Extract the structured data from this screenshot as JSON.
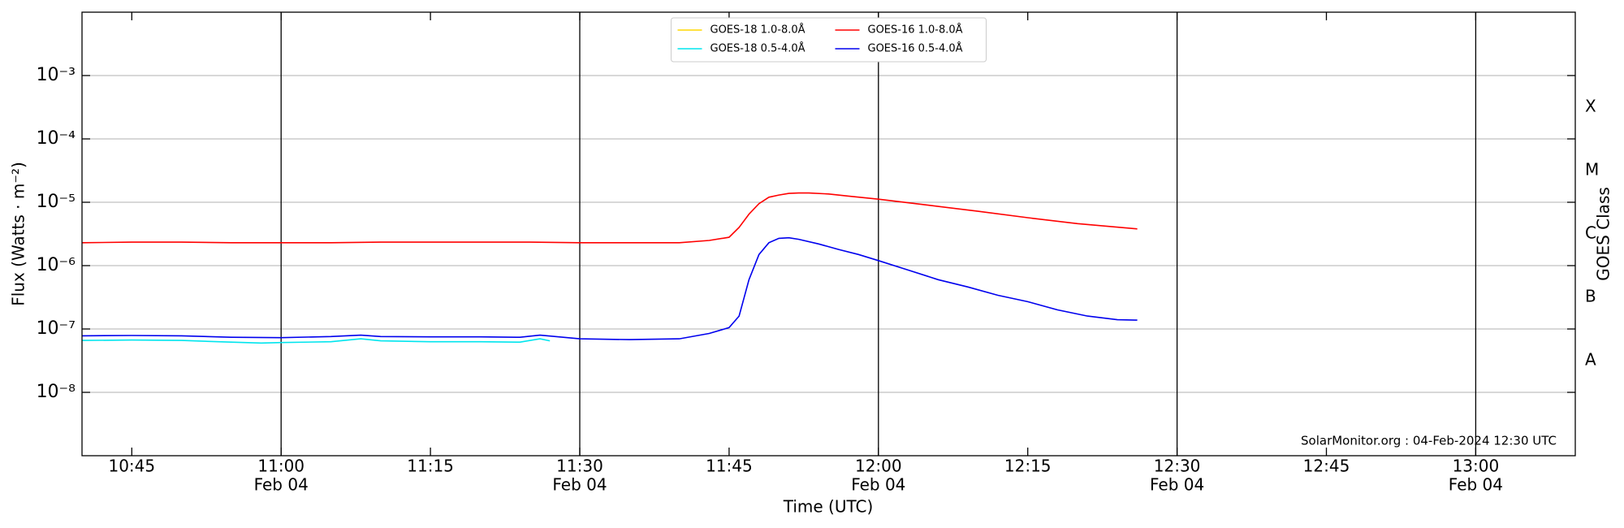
{
  "chart_data": {
    "type": "line",
    "xlabel": "Time (UTC)",
    "ylabel": "Flux (Watts · m⁻²)",
    "y2label": "GOES Class",
    "annotation": "SolarMonitor.org : 04-Feb-2024 12:30 UTC",
    "xlim": [
      "10:40",
      "13:10"
    ],
    "xticks": [
      "10:45",
      "11:00",
      "11:15",
      "11:30",
      "11:45",
      "12:00",
      "12:15",
      "12:30",
      "12:45",
      "13:00"
    ],
    "xtick_sublabels": [
      null,
      "Feb 04",
      null,
      "Feb 04",
      null,
      "Feb 04",
      null,
      "Feb 04",
      null,
      "Feb 04"
    ],
    "ylog": true,
    "ylim": [
      1e-09,
      0.01
    ],
    "yticks": [
      {
        "value": 1e-08,
        "label": "10⁻⁸"
      },
      {
        "value": 1e-07,
        "label": "10⁻⁷"
      },
      {
        "value": 1e-06,
        "label": "10⁻⁶"
      },
      {
        "value": 1e-05,
        "label": "10⁻⁵"
      },
      {
        "value": 0.0001,
        "label": "10⁻⁴"
      },
      {
        "value": 0.001,
        "label": "10⁻³"
      }
    ],
    "y2lim": [
      1e-09,
      0.01
    ],
    "y2ticks": [
      {
        "value": 3.16e-08,
        "label": "A"
      },
      {
        "value": 3.16e-07,
        "label": "B"
      },
      {
        "value": 3.16e-06,
        "label": "C"
      },
      {
        "value": 3.16e-05,
        "label": "M"
      },
      {
        "value": 0.000316,
        "label": "X"
      }
    ],
    "grid": true,
    "legend": "upper center",
    "series": [
      {
        "name": "GOES-18 1.0-8.0Å",
        "color": "#ffd700",
        "x": [],
        "values": []
      },
      {
        "name": "GOES-16 1.0-8.0Å",
        "color": "#ff0000",
        "x": [
          "10:40",
          "10:45",
          "10:50",
          "10:55",
          "11:00",
          "11:05",
          "11:10",
          "11:15",
          "11:20",
          "11:25",
          "11:30",
          "11:35",
          "11:40",
          "11:43",
          "11:45",
          "11:46",
          "11:47",
          "11:48",
          "11:49",
          "11:50",
          "11:51",
          "11:52",
          "11:53",
          "11:55",
          "11:57",
          "12:00",
          "12:05",
          "12:10",
          "12:15",
          "12:20",
          "12:26"
        ],
        "values": [
          2.3e-06,
          2.35e-06,
          2.35e-06,
          2.3e-06,
          2.3e-06,
          2.3e-06,
          2.35e-06,
          2.35e-06,
          2.35e-06,
          2.35e-06,
          2.3e-06,
          2.3e-06,
          2.3e-06,
          2.5e-06,
          2.8e-06,
          4e-06,
          6.5e-06,
          9.5e-06,
          1.2e-05,
          1.3e-05,
          1.38e-05,
          1.4e-05,
          1.4e-05,
          1.35e-05,
          1.25e-05,
          1.12e-05,
          9e-06,
          7.2e-06,
          5.7e-06,
          4.6e-06,
          3.8e-06
        ]
      },
      {
        "name": "GOES-18 0.5-4.0Å",
        "color": "#00e5ee",
        "x": [
          "10:40",
          "10:45",
          "10:50",
          "10:55",
          "10:58",
          "11:00",
          "11:05",
          "11:08",
          "11:10",
          "11:15",
          "11:20",
          "11:24",
          "11:26",
          "11:27"
        ],
        "values": [
          6.6e-08,
          6.7e-08,
          6.6e-08,
          6.2e-08,
          6e-08,
          6.1e-08,
          6.3e-08,
          7e-08,
          6.5e-08,
          6.3e-08,
          6.3e-08,
          6.2e-08,
          7e-08,
          6.5e-08
        ]
      },
      {
        "name": "GOES-16 0.5-4.0Å",
        "color": "#0000ee",
        "x": [
          "10:40",
          "10:45",
          "10:50",
          "10:55",
          "11:00",
          "11:05",
          "11:08",
          "11:10",
          "11:15",
          "11:20",
          "11:24",
          "11:26",
          "11:30",
          "11:35",
          "11:40",
          "11:43",
          "11:45",
          "11:46",
          "11:47",
          "11:48",
          "11:49",
          "11:50",
          "11:51",
          "11:52",
          "11:54",
          "11:56",
          "11:58",
          "12:00",
          "12:03",
          "12:06",
          "12:09",
          "12:12",
          "12:15",
          "12:18",
          "12:21",
          "12:24",
          "12:26"
        ],
        "values": [
          7.8e-08,
          7.9e-08,
          7.8e-08,
          7.4e-08,
          7.3e-08,
          7.6e-08,
          8e-08,
          7.6e-08,
          7.5e-08,
          7.5e-08,
          7.4e-08,
          8e-08,
          7e-08,
          6.8e-08,
          7e-08,
          8.5e-08,
          1.05e-07,
          1.6e-07,
          6e-07,
          1.5e-06,
          2.3e-06,
          2.7e-06,
          2.75e-06,
          2.6e-06,
          2.2e-06,
          1.8e-06,
          1.5e-06,
          1.2e-06,
          8.5e-07,
          6e-07,
          4.6e-07,
          3.4e-07,
          2.7e-07,
          2e-07,
          1.6e-07,
          1.4e-07,
          1.38e-07
        ]
      }
    ]
  }
}
